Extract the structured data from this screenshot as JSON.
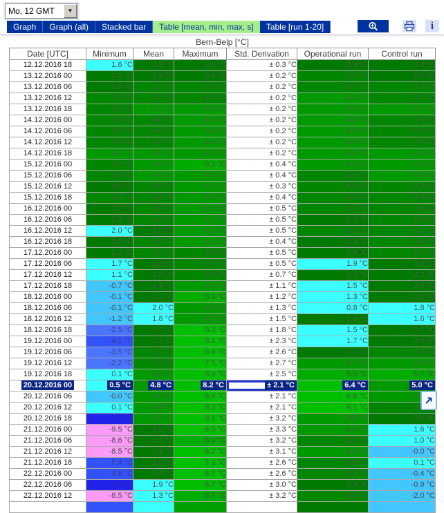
{
  "toolbar": {
    "dropdown_value": "Mo, 12 GMT",
    "tabs": [
      "Graph",
      "Graph (all)",
      "Stacked bar",
      "Table [mean, min, max, s]",
      "Table [run 1-20]"
    ],
    "active_tab": "Table [mean, min, max, s]",
    "icons": [
      "zoom-icon",
      "print-icon",
      "info-icon"
    ],
    "tab_color": "#0033A0",
    "active_tab_color": "#A6EE8C"
  },
  "table": {
    "title": "Bern-Belp [°C]",
    "columns": [
      "Date [UTC]",
      "Minimum",
      "Mean",
      "Maximum",
      "Std. Derivation",
      "Operational run",
      "Control run"
    ],
    "unit": "°C",
    "selected_index": 29,
    "selection_color": "#0A2584",
    "rows": [
      [
        "12.12.2016 18",
        "1.6",
        "2.3",
        "2.8",
        "0.3",
        "2.9",
        "2.3"
      ],
      [
        "13.12.2016 00",
        "2.1",
        "2.4",
        "2.8",
        "0.2",
        "3.1",
        "2.4"
      ],
      [
        "13.12.2016 06",
        "2.9",
        "3.2",
        "3.6",
        "0.2",
        "3.7",
        "3.3"
      ],
      [
        "13.12.2016 12",
        "3.3",
        "3.7",
        "4.0",
        "0.2",
        "4.1",
        "3.7"
      ],
      [
        "13.12.2016 18",
        "3.7",
        "4.1",
        "4.5",
        "0.2",
        "4.2",
        "4.1"
      ],
      [
        "14.12.2016 00",
        "3.5",
        "4.0",
        "4.5",
        "0.2",
        "4.2",
        "3.9"
      ],
      [
        "14.12.2016 06",
        "3.5",
        "4.0",
        "4.4",
        "0.2",
        "4.5",
        "3.9"
      ],
      [
        "14.12.2016 12",
        "3.4",
        "4.0",
        "4.4",
        "0.2",
        "4.6",
        "3.9"
      ],
      [
        "14.12.2016 18",
        "4.1",
        "4.5",
        "4.9",
        "0.2",
        "4.5",
        "4.4"
      ],
      [
        "15.12.2016 00",
        "3.7",
        "4.6",
        "5.1",
        "0.4",
        "4.6",
        "4.5"
      ],
      [
        "15.12.2016 06",
        "3.6",
        "4.4",
        "4.9",
        "0.4",
        "3.9",
        "4.6"
      ],
      [
        "15.12.2016 12",
        "3.0",
        "3.6",
        "4.1",
        "0.3",
        "4.0",
        "3.8"
      ],
      [
        "15.12.2016 18",
        "3.3",
        "3.8",
        "4.5",
        "0.4",
        "4.0",
        "4.0"
      ],
      [
        "16.12.2016 00",
        "2.2",
        "3.5",
        "4.2",
        "0.5",
        "3.1",
        "3.6"
      ],
      [
        "16.12.2016 06",
        "2.3",
        "3.4",
        "4.1",
        "0.5",
        "2.7",
        "3.5"
      ],
      [
        "16.12.2016 12",
        "2.0",
        "2.9",
        "4.1",
        "0.5",
        "3.5",
        "3.1"
      ],
      [
        "16.12.2016 18",
        "2.6",
        "3.4",
        "4.1",
        "0.4",
        "2.8",
        "3.6"
      ],
      [
        "17.12.2016 00",
        "2.1",
        "3.1",
        "3.8",
        "0.5",
        "2.6",
        "3.1"
      ],
      [
        "17.12.2016 06",
        "1.7",
        "2.8",
        "3.7",
        "0.5",
        "1.9",
        "2.8"
      ],
      [
        "17.12.2016 12",
        "1.1",
        "2.3",
        "3.9",
        "0.7",
        "2.1",
        "2.2"
      ],
      [
        "17.12.2016 18",
        "-0.7",
        "2.4",
        "4.9",
        "1.1",
        "1.5",
        "2.5"
      ],
      [
        "18.12.2016 00",
        "-0.1",
        "2.1",
        "5.1",
        "1.2",
        "1.3",
        "2.1"
      ],
      [
        "18.12.2016 06",
        "-0.1",
        "2.0",
        "4.8",
        "1.3",
        "0.8",
        "1.8"
      ],
      [
        "18.12.2016 12",
        "-1.2",
        "1.8",
        "4.5",
        "1.5",
        "2.2",
        "1.6"
      ],
      [
        "18.12.2016 18",
        "-2.5",
        "2.7",
        "6.3",
        "1.8",
        "1.5",
        "2.7"
      ],
      [
        "19.12.2016 00",
        "-4.1",
        "2.7",
        "6.1",
        "2.3",
        "1.7",
        "2.9"
      ],
      [
        "19.12.2016 06",
        "-3.5",
        "3.2",
        "6.6",
        "2.6",
        "2.5",
        "3.8"
      ],
      [
        "19.12.2016 12",
        "-2.2",
        "3.7",
        "7.5",
        "2.7",
        "4.7",
        "4.9"
      ],
      [
        "19.12.2016 18",
        "0.1",
        "4.6",
        "8.9",
        "2.5",
        "5.5",
        "5.7"
      ],
      [
        "20.12.2016 00",
        "0.5",
        "4.8",
        "8.2",
        "2.1",
        "6.4",
        "5.0"
      ],
      [
        "20.12.2016 06",
        "-0.0",
        "4.9",
        "8.4",
        "2.1",
        "6.6",
        "4.3"
      ],
      [
        "20.12.2016 12",
        "0.1",
        "4.4",
        "8.3",
        "2.1",
        "6.1",
        "3.3"
      ],
      [
        "20.12.2016 18",
        "-7.1",
        "4.2",
        "9.1",
        "3.2",
        "4.5",
        "2.6"
      ],
      [
        "21.12.2016 00",
        "-9.5",
        "2.9",
        "6.5",
        "3.3",
        "4.4",
        "1.6"
      ],
      [
        "21.12.2016 06",
        "-8.6",
        "2.7",
        "5.9",
        "3.2",
        "3.9",
        "1.0"
      ],
      [
        "21.12.2016 12",
        "-8.5",
        "2.4",
        "6.2",
        "3.1",
        "4.6",
        "-0.0"
      ],
      [
        "21.12.2016 18",
        "-5.4",
        "3.0",
        "7.1",
        "2.6",
        "3.8",
        "0.1"
      ],
      [
        "22.12.2016 00",
        "-4.8",
        "2.4",
        "6.7",
        "2.6",
        "3.1",
        "-0.4"
      ],
      [
        "22.12.2016 06",
        "-7.0",
        "1.9",
        "6.7",
        "3.0",
        "2.5",
        "-0.9"
      ],
      [
        "22.12.2016 12",
        "-8.5",
        "1.3",
        "5.7",
        "3.2",
        "3.2",
        "-2.0"
      ]
    ],
    "partial_bottom_row_colors": [
      "#ffffff",
      "#3353FA",
      "#3CFFFF",
      "#00A000",
      "#ffffff",
      "#007A00",
      "#41C6FF"
    ]
  },
  "palette": [
    {
      "lt": -8.05,
      "bg": "#FC9BF8",
      "fg": "#4D4D4D"
    },
    {
      "lt": -6.05,
      "bg": "#2222E8",
      "fg": "#2A2AB4"
    },
    {
      "lt": -4.05,
      "bg": "#3353FA",
      "fg": "#39398C"
    },
    {
      "lt": -2.05,
      "bg": "#4A75FF",
      "fg": "#42427A"
    },
    {
      "lt": 0,
      "bg": "#41C6FF",
      "fg": "#4D4D4D"
    },
    {
      "lt": 2.05,
      "bg": "#3CFFFF",
      "fg": "#4D4D4D"
    },
    {
      "lt": 3.05,
      "bg": "#007A00",
      "fg": "#4D5D4D"
    },
    {
      "lt": 4.05,
      "bg": "#008600",
      "fg": "#4D5D4D"
    },
    {
      "lt": 5.05,
      "bg": "#009A00",
      "fg": "#4F5F4F"
    },
    {
      "lt": 6.05,
      "bg": "#00AC00",
      "fg": "#515151"
    },
    {
      "lt": 999,
      "bg": "#00BE00",
      "fg": "#515151"
    }
  ]
}
